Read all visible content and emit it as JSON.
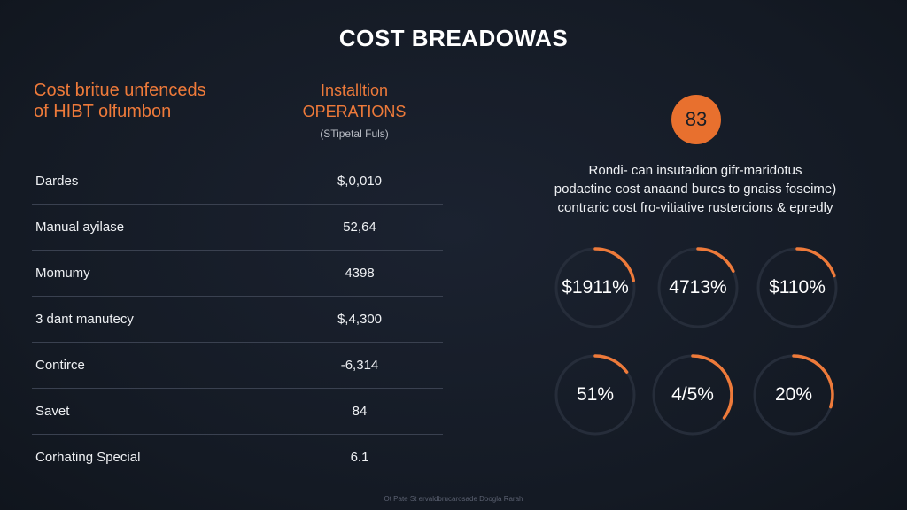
{
  "title": "COST BREADOWAS",
  "left_heading": {
    "line1": "Cost britue unfenceds",
    "line2": "of HIBT olfumbon"
  },
  "column_heading": {
    "line1": "Installtion",
    "line2": "OPERATIONS",
    "line3": "(STipetal Fuls)"
  },
  "rows": [
    {
      "label": "Dardes",
      "value": "$,0,010"
    },
    {
      "label": "Manual ayilase",
      "value": "52,64"
    },
    {
      "label": "Momumy",
      "value": "4398"
    },
    {
      "label": "3 dant manutecy",
      "value": "$,4,300"
    },
    {
      "label": "Contirce",
      "value": "-6,314"
    },
    {
      "label": "Savet",
      "value": "84"
    },
    {
      "label": "Corhating Special",
      "value": "6.1"
    }
  ],
  "badge": "83",
  "description": {
    "line1": "Rondi- can insutadion gifr-maridotus",
    "line2": "podactine cost anaand bures to gnaiss foseime)",
    "line3": "contraric cost fro-vitiative rustercions & epredly"
  },
  "gauges": [
    {
      "label": "$1911%",
      "fraction": 0.22
    },
    {
      "label": "4713%",
      "fraction": 0.18
    },
    {
      "label": "$110%",
      "fraction": 0.2
    },
    {
      "label": "51%",
      "fraction": 0.15
    },
    {
      "label": "4/5%",
      "fraction": 0.35
    },
    {
      "label": "20%",
      "fraction": 0.3
    }
  ],
  "footer": "Ot Pate St ervaldbrucarosade Doogla Rarah",
  "colors": {
    "accent": "#ee7a3a",
    "background": "#151b26",
    "ring_track": "#262d3a"
  }
}
